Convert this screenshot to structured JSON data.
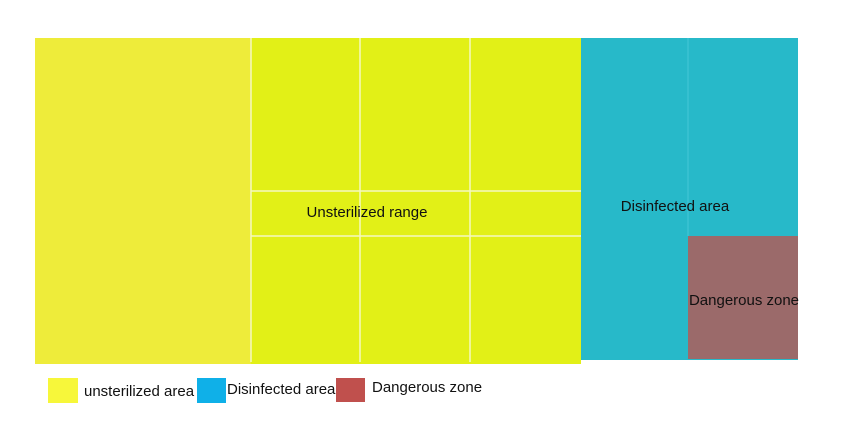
{
  "zones": [
    {
      "label": "Unsterilized range"
    },
    {
      "label": "Disinfected area"
    },
    {
      "label": "Dangerous zone"
    }
  ],
  "legend": [
    {
      "label": "unsterilized area"
    },
    {
      "label": "Disinfected area"
    },
    {
      "label": "Dangerous zone"
    }
  ]
}
